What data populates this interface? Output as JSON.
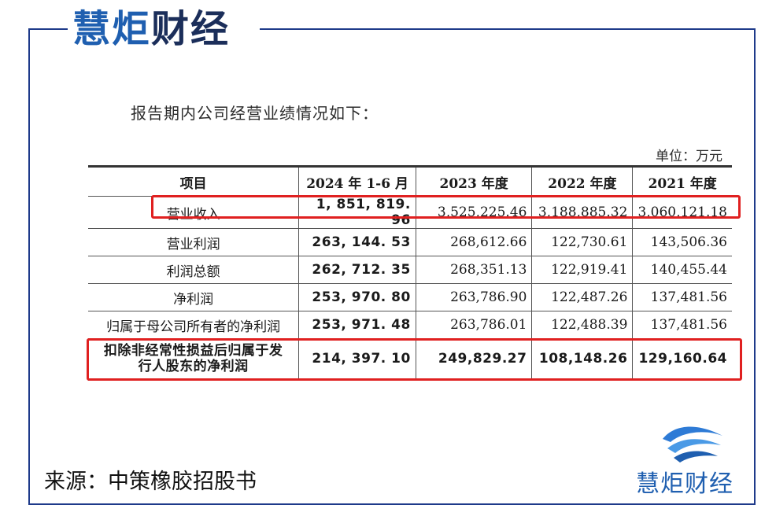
{
  "brand": {
    "part1": "慧炬",
    "part2": "财经"
  },
  "intro_text": "报告期内公司经营业绩情况如下：",
  "unit_text": "单位：万元",
  "table": {
    "headers": [
      "项目",
      "2024 年 1-6 月",
      "2023 年度",
      "2022 年度",
      "2021 年度"
    ],
    "rows": [
      {
        "label": "营业收入",
        "values": [
          "1, 851, 819. 96",
          "3,525,225.46",
          "3,188,885.32",
          "3,060,121.18"
        ]
      },
      {
        "label": "营业利润",
        "values": [
          "263, 144. 53",
          "268,612.66",
          "122,730.61",
          "143,506.36"
        ]
      },
      {
        "label": "利润总额",
        "values": [
          "262, 712. 35",
          "268,351.13",
          "122,919.41",
          "140,455.44"
        ]
      },
      {
        "label": "净利润",
        "values": [
          "253, 970. 80",
          "263,786.90",
          "122,487.26",
          "137,481.56"
        ]
      },
      {
        "label": "归属于母公司所有者的净利润",
        "values": [
          "253, 971. 48",
          "263,786.01",
          "122,488.39",
          "137,481.56"
        ]
      },
      {
        "label_line1": "扣除非经常性损益后归属于发",
        "label_line2": "行人股东的净利润",
        "values": [
          "214, 397. 10",
          "249,829.27",
          "108,148.26",
          "129,160.64"
        ]
      }
    ]
  },
  "source_text": "来源：中策橡胶招股书",
  "colors": {
    "brand_blue": "#1f5fb0",
    "frame_blue": "#1e3a8a",
    "highlight_red": "#e02020"
  }
}
